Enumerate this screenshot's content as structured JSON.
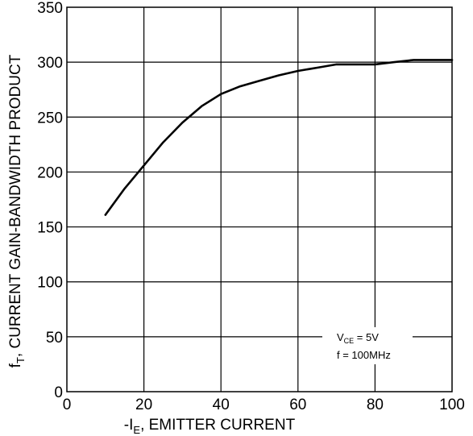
{
  "chart_data": {
    "type": "line",
    "x": [
      10,
      15,
      20,
      25,
      30,
      35,
      40,
      45,
      50,
      55,
      60,
      65,
      70,
      75,
      80,
      85,
      90,
      95,
      100
    ],
    "series": [
      {
        "values": [
          161,
          185,
          206,
          227,
          245,
          260,
          271,
          278,
          283,
          288,
          292,
          295,
          298,
          298,
          298,
          300,
          302,
          302,
          302
        ],
        "color": "#000000"
      }
    ],
    "xlim": [
      0,
      100
    ],
    "ylim": [
      0,
      350
    ],
    "xticks": [
      0,
      20,
      40,
      60,
      80,
      100
    ],
    "yticks": [
      0,
      50,
      100,
      150,
      200,
      250,
      300,
      350
    ],
    "xticklabels": [
      "0",
      "20",
      "40",
      "60",
      "80",
      "100"
    ],
    "yticklabels": [
      "0",
      "50",
      "100",
      "150",
      "200",
      "250",
      "300",
      "350"
    ],
    "xlabel": {
      "prefix": "-I",
      "subscript": "E",
      "suffix": ", EMITTER CURRENT"
    },
    "ylabel": {
      "prefix": "f",
      "subscript": "T",
      "suffix": ", CURRENT GAIN-BANDWIDTH PRODUCT"
    },
    "annotation": {
      "line1_prefix": "V",
      "line1_subscript": "CE",
      "line1_suffix": " = 5V",
      "line2": "f = 100MHz"
    },
    "grid": true
  }
}
